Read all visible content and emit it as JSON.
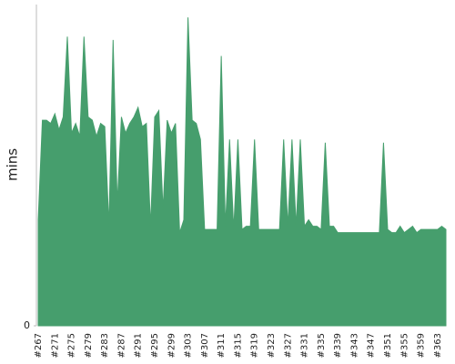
{
  "chart_data": {
    "type": "area",
    "y_label": "mins",
    "color": "#469e6d",
    "categories": [
      "#267",
      null,
      null,
      null,
      "#271",
      null,
      null,
      null,
      "#275",
      null,
      null,
      null,
      "#279",
      null,
      null,
      null,
      "#283",
      null,
      null,
      null,
      "#287",
      null,
      null,
      null,
      "#291",
      null,
      null,
      null,
      "#295",
      null,
      null,
      null,
      "#299",
      null,
      null,
      null,
      "#303",
      null,
      null,
      null,
      "#307",
      null,
      null,
      null,
      "#311",
      null,
      null,
      null,
      "#315",
      null,
      null,
      null,
      "#319",
      null,
      null,
      null,
      "#323",
      null,
      null,
      null,
      "#327",
      null,
      null,
      null,
      "#331",
      null,
      null,
      null,
      "#335",
      null,
      null,
      null,
      "#339",
      null,
      null,
      null,
      "#343",
      null,
      null,
      null,
      "#347",
      null,
      null,
      null,
      "#351",
      null,
      null,
      null,
      "#355",
      null,
      null,
      null,
      "#359",
      null,
      null,
      null,
      "#363",
      null,
      null
    ],
    "values": [
      33,
      64,
      64,
      63,
      66,
      61,
      65,
      90,
      60,
      63,
      59,
      90,
      65,
      64,
      59,
      63,
      62,
      31,
      89,
      38,
      65,
      60,
      63,
      65,
      68,
      62,
      63,
      31,
      65,
      67,
      36,
      64,
      60,
      63,
      29,
      33,
      96,
      64,
      63,
      58,
      30,
      30,
      30,
      30,
      84,
      31,
      58,
      30,
      58,
      30,
      31,
      31,
      58,
      30,
      30,
      30,
      30,
      30,
      30,
      58,
      31,
      58,
      31,
      58,
      31,
      33,
      31,
      31,
      30,
      57,
      31,
      31,
      29,
      29,
      29,
      29,
      29,
      29,
      29,
      29,
      29,
      29,
      29,
      57,
      30,
      29,
      29,
      31,
      29,
      30,
      31,
      29,
      30,
      30,
      30,
      30,
      30,
      31,
      30
    ],
    "ylim": [
      0,
      100
    ],
    "yticks": [
      0
    ]
  }
}
